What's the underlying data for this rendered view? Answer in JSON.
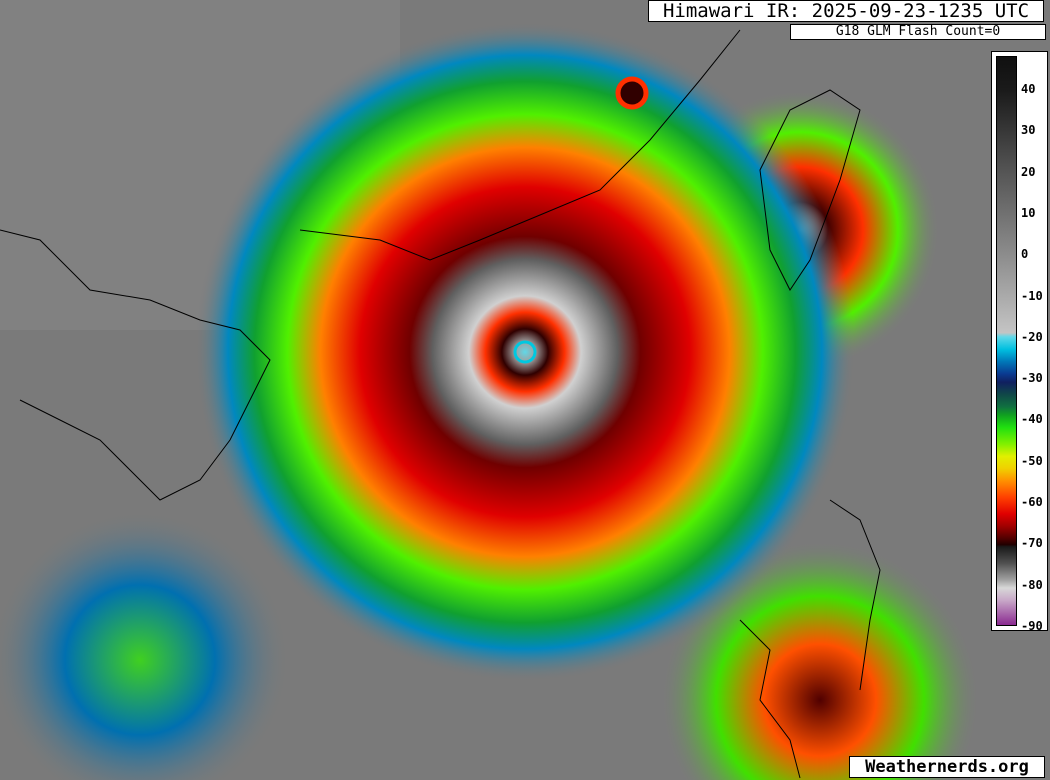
{
  "header": {
    "title": "Himawari IR: 2025-09-23-1235 UTC",
    "subtitle": "G18 GLM Flash Count=0"
  },
  "colorbar": {
    "units_note": "",
    "ticks": [
      "40",
      "30",
      "20",
      "10",
      "0",
      "-10",
      "-20",
      "-30",
      "-40",
      "-50",
      "-60",
      "-70",
      "-80",
      "-90"
    ],
    "range": [
      48,
      -90
    ]
  },
  "watermark": "Weathernerds.org",
  "colors": {
    "background_clear": "#7a7a7a",
    "eye_ring": "#00c8e0",
    "coldest_tops": "#8a2a90",
    "eyewall": "#d0d0d0"
  }
}
